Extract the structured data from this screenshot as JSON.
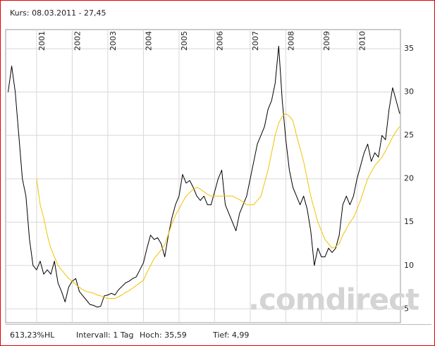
{
  "chart_data": {
    "type": "line",
    "title": "Kurs: 08.03.2011 - 27,45",
    "xlim": [
      2000.13,
      2011.22
    ],
    "xticks": [
      2001,
      2002,
      2003,
      2004,
      2005,
      2006,
      2007,
      2008,
      2009,
      2010
    ],
    "ylim": [
      3.4,
      37.2
    ],
    "yticks": [
      5,
      10,
      15,
      20,
      25,
      30,
      35
    ],
    "grid": true,
    "series": [
      {
        "color": "#000000",
        "x": [
          2000.2,
          2000.3,
          2000.4,
          2000.5,
          2000.6,
          2000.7,
          2000.8,
          2000.9,
          2001.0,
          2001.1,
          2001.2,
          2001.3,
          2001.4,
          2001.5,
          2001.6,
          2001.7,
          2001.8,
          2001.9,
          2002.0,
          2002.1,
          2002.2,
          2002.3,
          2002.4,
          2002.5,
          2002.6,
          2002.7,
          2002.8,
          2002.9,
          2003.0,
          2003.1,
          2003.2,
          2003.3,
          2003.4,
          2003.5,
          2003.6,
          2003.7,
          2003.8,
          2003.9,
          2004.0,
          2004.1,
          2004.2,
          2004.3,
          2004.4,
          2004.5,
          2004.6,
          2004.7,
          2004.8,
          2004.9,
          2005.0,
          2005.1,
          2005.2,
          2005.3,
          2005.4,
          2005.5,
          2005.6,
          2005.7,
          2005.8,
          2005.9,
          2006.0,
          2006.1,
          2006.2,
          2006.3,
          2006.4,
          2006.5,
          2006.6,
          2006.7,
          2006.8,
          2006.9,
          2007.0,
          2007.1,
          2007.2,
          2007.3,
          2007.4,
          2007.5,
          2007.6,
          2007.7,
          2007.8,
          2007.9,
          2008.0,
          2008.1,
          2008.2,
          2008.3,
          2008.4,
          2008.5,
          2008.6,
          2008.7,
          2008.8,
          2008.9,
          2009.0,
          2009.1,
          2009.2,
          2009.3,
          2009.4,
          2009.5,
          2009.6,
          2009.7,
          2009.8,
          2009.9,
          2010.0,
          2010.1,
          2010.2,
          2010.3,
          2010.4,
          2010.5,
          2010.6,
          2010.7,
          2010.8,
          2010.9,
          2011.0,
          2011.1,
          2011.2
        ],
        "values": [
          30,
          33,
          30,
          25,
          20,
          18,
          13,
          10,
          9.5,
          10.5,
          9,
          9.5,
          9,
          10.5,
          8,
          7,
          5.8,
          7.5,
          8.2,
          8.5,
          7,
          6.5,
          6,
          5.5,
          5.4,
          5.2,
          5.3,
          6.5,
          6.6,
          6.8,
          6.6,
          7.2,
          7.6,
          8,
          8.2,
          8.5,
          8.7,
          9.5,
          10.3,
          12,
          13.5,
          13,
          13.2,
          12.5,
          11,
          13.5,
          15.5,
          17,
          18,
          20.5,
          19.5,
          19.8,
          19,
          18,
          17.5,
          18,
          17,
          17,
          18.5,
          20,
          21,
          17,
          16,
          15,
          14,
          16,
          17,
          18,
          20,
          22,
          24,
          25,
          26,
          28,
          29,
          31,
          35.3,
          29,
          24.5,
          21,
          19,
          18,
          17,
          18,
          16.5,
          14,
          10,
          12,
          11,
          11,
          12,
          11.5,
          12,
          13.5,
          17,
          18,
          17,
          18,
          20,
          21.5,
          23,
          24,
          22,
          23,
          22.5,
          25,
          24.5,
          28,
          30.5,
          29,
          27.5
        ]
      },
      {
        "color": "#f2c200",
        "x": [
          2001.0,
          2001.1,
          2001.2,
          2001.3,
          2001.4,
          2001.5,
          2001.6,
          2001.7,
          2001.8,
          2001.9,
          2002.0,
          2002.1,
          2002.2,
          2002.3,
          2002.4,
          2002.5,
          2002.6,
          2002.7,
          2002.8,
          2002.9,
          2003.0,
          2003.1,
          2003.2,
          2003.3,
          2003.4,
          2003.5,
          2003.6,
          2003.7,
          2003.8,
          2003.9,
          2004.0,
          2004.1,
          2004.2,
          2004.3,
          2004.4,
          2004.5,
          2004.6,
          2004.7,
          2004.8,
          2004.9,
          2005.0,
          2005.1,
          2005.2,
          2005.3,
          2005.4,
          2005.5,
          2005.6,
          2005.7,
          2005.8,
          2005.9,
          2006.0,
          2006.1,
          2006.2,
          2006.3,
          2006.4,
          2006.5,
          2006.6,
          2006.7,
          2006.8,
          2006.9,
          2007.0,
          2007.1,
          2007.2,
          2007.3,
          2007.4,
          2007.5,
          2007.6,
          2007.7,
          2007.8,
          2007.9,
          2008.0,
          2008.1,
          2008.2,
          2008.3,
          2008.4,
          2008.5,
          2008.6,
          2008.7,
          2008.8,
          2008.9,
          2009.0,
          2009.1,
          2009.2,
          2009.3,
          2009.4,
          2009.5,
          2009.6,
          2009.7,
          2009.8,
          2009.9,
          2010.0,
          2010.1,
          2010.2,
          2010.3,
          2010.4,
          2010.5,
          2010.6,
          2010.7,
          2010.8,
          2010.9,
          2011.0,
          2011.1,
          2011.2
        ],
        "values": [
          20,
          17,
          15.5,
          13.5,
          12,
          11,
          10,
          9.5,
          9,
          8.5,
          8.2,
          7.8,
          7.5,
          7.2,
          7,
          6.9,
          6.8,
          6.6,
          6.5,
          6.3,
          6.2,
          6.2,
          6.2,
          6.4,
          6.6,
          6.9,
          7.1,
          7.4,
          7.7,
          8,
          8.3,
          9.2,
          10,
          10.8,
          11.3,
          11.8,
          12.4,
          13.6,
          14.8,
          15.8,
          16.5,
          17.3,
          18,
          18.4,
          18.8,
          19,
          18.8,
          18.5,
          18.2,
          18,
          18,
          18,
          18,
          18,
          18,
          18,
          17.8,
          17.6,
          17.3,
          17,
          17,
          17,
          17.5,
          18,
          19.5,
          21,
          23,
          25,
          26.4,
          27.2,
          27.5,
          27.2,
          26.7,
          25,
          23.5,
          22,
          20,
          18,
          16.5,
          15,
          14,
          13,
          12.5,
          12,
          12.2,
          12.5,
          13.5,
          14.2,
          15,
          15.5,
          16.5,
          17.5,
          18.8,
          20,
          20.8,
          21.5,
          22,
          22.5,
          23.2,
          24,
          24.8,
          25.5,
          26
        ]
      }
    ],
    "footer": [
      "613,23%HL",
      "Intervall: 1 Tag",
      "Hoch: 35,59",
      "Tief: 4,99"
    ],
    "watermark": ".comdirect"
  }
}
